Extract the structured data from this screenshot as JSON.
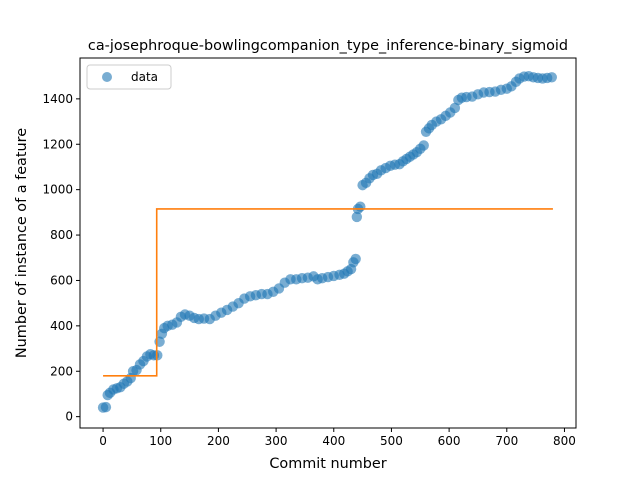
{
  "chart_data": {
    "type": "scatter",
    "title": "ca-josephroque-bowlingcompanion_type_inference-binary_sigmoid",
    "xlabel": "Commit number",
    "ylabel": "Number of instance of a feature",
    "xlim": [
      -40,
      820
    ],
    "ylim": [
      -50,
      1580
    ],
    "xticks": [
      0,
      100,
      200,
      300,
      400,
      500,
      600,
      700,
      800
    ],
    "yticks": [
      0,
      200,
      400,
      600,
      800,
      1000,
      1200,
      1400
    ],
    "legend": {
      "location": "top-left",
      "entries": [
        "data"
      ]
    },
    "colors": {
      "data": "#1f77b4",
      "fit": "#ff7f0e"
    },
    "series": [
      {
        "name": "data",
        "kind": "scatter",
        "points": [
          [
            0,
            40
          ],
          [
            5,
            42
          ],
          [
            8,
            95
          ],
          [
            12,
            105
          ],
          [
            18,
            120
          ],
          [
            24,
            125
          ],
          [
            30,
            130
          ],
          [
            36,
            145
          ],
          [
            42,
            155
          ],
          [
            48,
            170
          ],
          [
            52,
            200
          ],
          [
            58,
            205
          ],
          [
            64,
            230
          ],
          [
            70,
            245
          ],
          [
            76,
            265
          ],
          [
            82,
            275
          ],
          [
            88,
            270
          ],
          [
            94,
            270
          ],
          [
            98,
            330
          ],
          [
            102,
            365
          ],
          [
            106,
            390
          ],
          [
            112,
            400
          ],
          [
            120,
            405
          ],
          [
            128,
            415
          ],
          [
            135,
            440
          ],
          [
            142,
            450
          ],
          [
            150,
            445
          ],
          [
            158,
            435
          ],
          [
            166,
            430
          ],
          [
            175,
            432
          ],
          [
            185,
            430
          ],
          [
            195,
            445
          ],
          [
            205,
            458
          ],
          [
            215,
            470
          ],
          [
            225,
            485
          ],
          [
            235,
            500
          ],
          [
            245,
            520
          ],
          [
            255,
            530
          ],
          [
            265,
            535
          ],
          [
            275,
            540
          ],
          [
            285,
            540
          ],
          [
            295,
            550
          ],
          [
            305,
            565
          ],
          [
            315,
            590
          ],
          [
            325,
            605
          ],
          [
            335,
            605
          ],
          [
            345,
            610
          ],
          [
            355,
            612
          ],
          [
            365,
            618
          ],
          [
            372,
            605
          ],
          [
            380,
            610
          ],
          [
            390,
            615
          ],
          [
            400,
            620
          ],
          [
            410,
            625
          ],
          [
            418,
            630
          ],
          [
            424,
            640
          ],
          [
            430,
            650
          ],
          [
            434,
            680
          ],
          [
            438,
            695
          ],
          [
            440,
            880
          ],
          [
            442,
            915
          ],
          [
            446,
            925
          ],
          [
            450,
            1020
          ],
          [
            456,
            1030
          ],
          [
            462,
            1050
          ],
          [
            468,
            1065
          ],
          [
            475,
            1070
          ],
          [
            482,
            1085
          ],
          [
            490,
            1095
          ],
          [
            498,
            1105
          ],
          [
            506,
            1110
          ],
          [
            514,
            1112
          ],
          [
            520,
            1125
          ],
          [
            526,
            1135
          ],
          [
            532,
            1145
          ],
          [
            538,
            1155
          ],
          [
            544,
            1165
          ],
          [
            550,
            1180
          ],
          [
            556,
            1195
          ],
          [
            560,
            1255
          ],
          [
            565,
            1270
          ],
          [
            570,
            1285
          ],
          [
            578,
            1300
          ],
          [
            586,
            1310
          ],
          [
            594,
            1325
          ],
          [
            602,
            1340
          ],
          [
            610,
            1360
          ],
          [
            616,
            1395
          ],
          [
            622,
            1405
          ],
          [
            630,
            1408
          ],
          [
            640,
            1410
          ],
          [
            650,
            1420
          ],
          [
            660,
            1428
          ],
          [
            670,
            1430
          ],
          [
            680,
            1432
          ],
          [
            690,
            1440
          ],
          [
            700,
            1445
          ],
          [
            708,
            1455
          ],
          [
            716,
            1475
          ],
          [
            722,
            1490
          ],
          [
            730,
            1498
          ],
          [
            738,
            1500
          ],
          [
            746,
            1495
          ],
          [
            754,
            1492
          ],
          [
            762,
            1490
          ],
          [
            770,
            1492
          ],
          [
            778,
            1495
          ]
        ]
      },
      {
        "name": "fit",
        "kind": "line",
        "points": [
          [
            0,
            180
          ],
          [
            93,
            180
          ],
          [
            93,
            915
          ],
          [
            780,
            915
          ]
        ]
      }
    ]
  }
}
